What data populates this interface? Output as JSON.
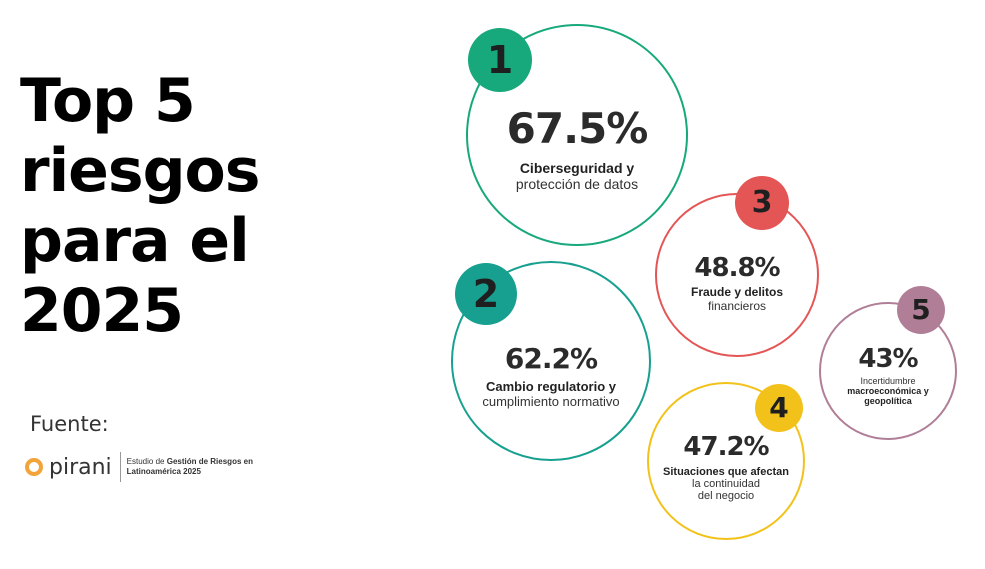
{
  "title_lines": [
    "Top 5",
    "riesgos",
    "para el",
    "2025"
  ],
  "source": {
    "label": "Fuente:",
    "brand": "pirani",
    "study_prefix": "Estudio de",
    "study_bold_1": "Gestión de Riesgos en",
    "study_bold_2": "Latinoamérica 2025"
  },
  "risks": [
    {
      "rank": "1",
      "percent": "67.5%",
      "value": 67.5,
      "label_bold": "Ciberseguridad y",
      "label_regular": [
        "protección de datos"
      ],
      "color": "#17a97b"
    },
    {
      "rank": "2",
      "percent": "62.2%",
      "value": 62.2,
      "label_bold": "Cambio regulatorio y",
      "label_regular": [
        "cumplimiento normativo"
      ],
      "color": "#17a08f"
    },
    {
      "rank": "3",
      "percent": "48.8%",
      "value": 48.8,
      "label_bold": "Fraude y delitos",
      "label_regular": [
        "financieros"
      ],
      "color": "#e45555"
    },
    {
      "rank": "4",
      "percent": "47.2%",
      "value": 47.2,
      "label_bold": "Situaciones que afectan",
      "label_regular": [
        "la continuidad",
        "del negocio"
      ],
      "color": "#f2c21b"
    },
    {
      "rank": "5",
      "percent": "43%",
      "value": 43,
      "label_bold_lines": [
        "macroeconómica y",
        "geopolítica"
      ],
      "label_regular_top": "Incertidumbre",
      "color": "#b07f97"
    }
  ]
}
